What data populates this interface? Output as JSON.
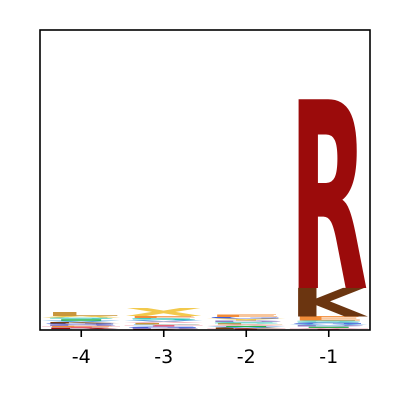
{
  "chart_data": {
    "type": "sequence-logo",
    "positions": [
      -4,
      -3,
      -2,
      -1
    ],
    "tick_labels": [
      "-4",
      "-3",
      "-2",
      "-1"
    ],
    "xlim": [
      -4.5,
      -0.5
    ],
    "ylim": [
      0,
      1.0
    ],
    "columns": [
      {
        "position": -4,
        "letters": [
          {
            "letter": "L",
            "color": "#c8963c",
            "height": 0.012
          },
          {
            "letter": "A",
            "color": "#f2c94c",
            "height": 0.006
          },
          {
            "letter": "V",
            "color": "#5aa5e0",
            "height": 0.005
          },
          {
            "letter": "I",
            "color": "#20b04a",
            "height": 0.005
          },
          {
            "letter": "S",
            "color": "#2ec4b6",
            "height": 0.005
          },
          {
            "letter": "T",
            "color": "#e85d75",
            "height": 0.004
          },
          {
            "letter": "E",
            "color": "#f28c38",
            "height": 0.004
          },
          {
            "letter": "D",
            "color": "#8e7cc3",
            "height": 0.004
          },
          {
            "letter": "G",
            "color": "#3b5bdb",
            "height": 0.004
          },
          {
            "letter": "K",
            "color": "#7a3b10",
            "height": 0.004
          },
          {
            "letter": "P",
            "color": "#a5d8ff",
            "height": 0.003
          },
          {
            "letter": "R",
            "color": "#9b0b0b",
            "height": 0.003
          }
        ]
      },
      {
        "position": -3,
        "letters": [
          {
            "letter": "X",
            "color": "#f2c94c",
            "height": 0.025
          },
          {
            "letter": "S",
            "color": "#2ec4b6",
            "height": 0.006
          },
          {
            "letter": "E",
            "color": "#f28c38",
            "height": 0.006
          },
          {
            "letter": "L",
            "color": "#c8963c",
            "height": 0.005
          },
          {
            "letter": "A",
            "color": "#f4b6c2",
            "height": 0.005
          },
          {
            "letter": "V",
            "color": "#5aa5e0",
            "height": 0.005
          },
          {
            "letter": "D",
            "color": "#8e7cc3",
            "height": 0.004
          },
          {
            "letter": "G",
            "color": "#3b5bdb",
            "height": 0.004
          },
          {
            "letter": "T",
            "color": "#e85d75",
            "height": 0.004
          },
          {
            "letter": "P",
            "color": "#a5d8ff",
            "height": 0.004
          },
          {
            "letter": "K",
            "color": "#7a3b10",
            "height": 0.003
          }
        ]
      },
      {
        "position": -2,
        "letters": [
          {
            "letter": "E",
            "color": "#f28c38",
            "height": 0.009
          },
          {
            "letter": "Y",
            "color": "#f2c94c",
            "height": 0.006
          },
          {
            "letter": "G",
            "color": "#3b5bdb",
            "height": 0.006
          },
          {
            "letter": "S",
            "color": "#2ec4b6",
            "height": 0.005
          },
          {
            "letter": "D",
            "color": "#8e7cc3",
            "height": 0.005
          },
          {
            "letter": "V",
            "color": "#5aa5e0",
            "height": 0.004
          },
          {
            "letter": "I",
            "color": "#20b04a",
            "height": 0.004
          },
          {
            "letter": "A",
            "color": "#f4b6c2",
            "height": 0.004
          },
          {
            "letter": "L",
            "color": "#c8963c",
            "height": 0.004
          },
          {
            "letter": "T",
            "color": "#e85d75",
            "height": 0.003
          },
          {
            "letter": "K",
            "color": "#7a3b10",
            "height": 0.003
          }
        ]
      },
      {
        "position": -1,
        "letters": [
          {
            "letter": "R",
            "color": "#9b0b0b",
            "height": 0.63
          },
          {
            "letter": "K",
            "color": "#6b3510",
            "height": 0.095
          },
          {
            "letter": "E",
            "color": "#f28c38",
            "height": 0.014
          },
          {
            "letter": "S",
            "color": "#2ec4b6",
            "height": 0.006
          },
          {
            "letter": "V",
            "color": "#5aa5e0",
            "height": 0.005
          },
          {
            "letter": "G",
            "color": "#3b5bdb",
            "height": 0.005
          },
          {
            "letter": "A",
            "color": "#f4b6c2",
            "height": 0.004
          },
          {
            "letter": "I",
            "color": "#20b04a",
            "height": 0.004
          },
          {
            "letter": "D",
            "color": "#8e7cc3",
            "height": 0.004
          },
          {
            "letter": "T",
            "color": "#e85d75",
            "height": 0.003
          }
        ]
      }
    ]
  }
}
